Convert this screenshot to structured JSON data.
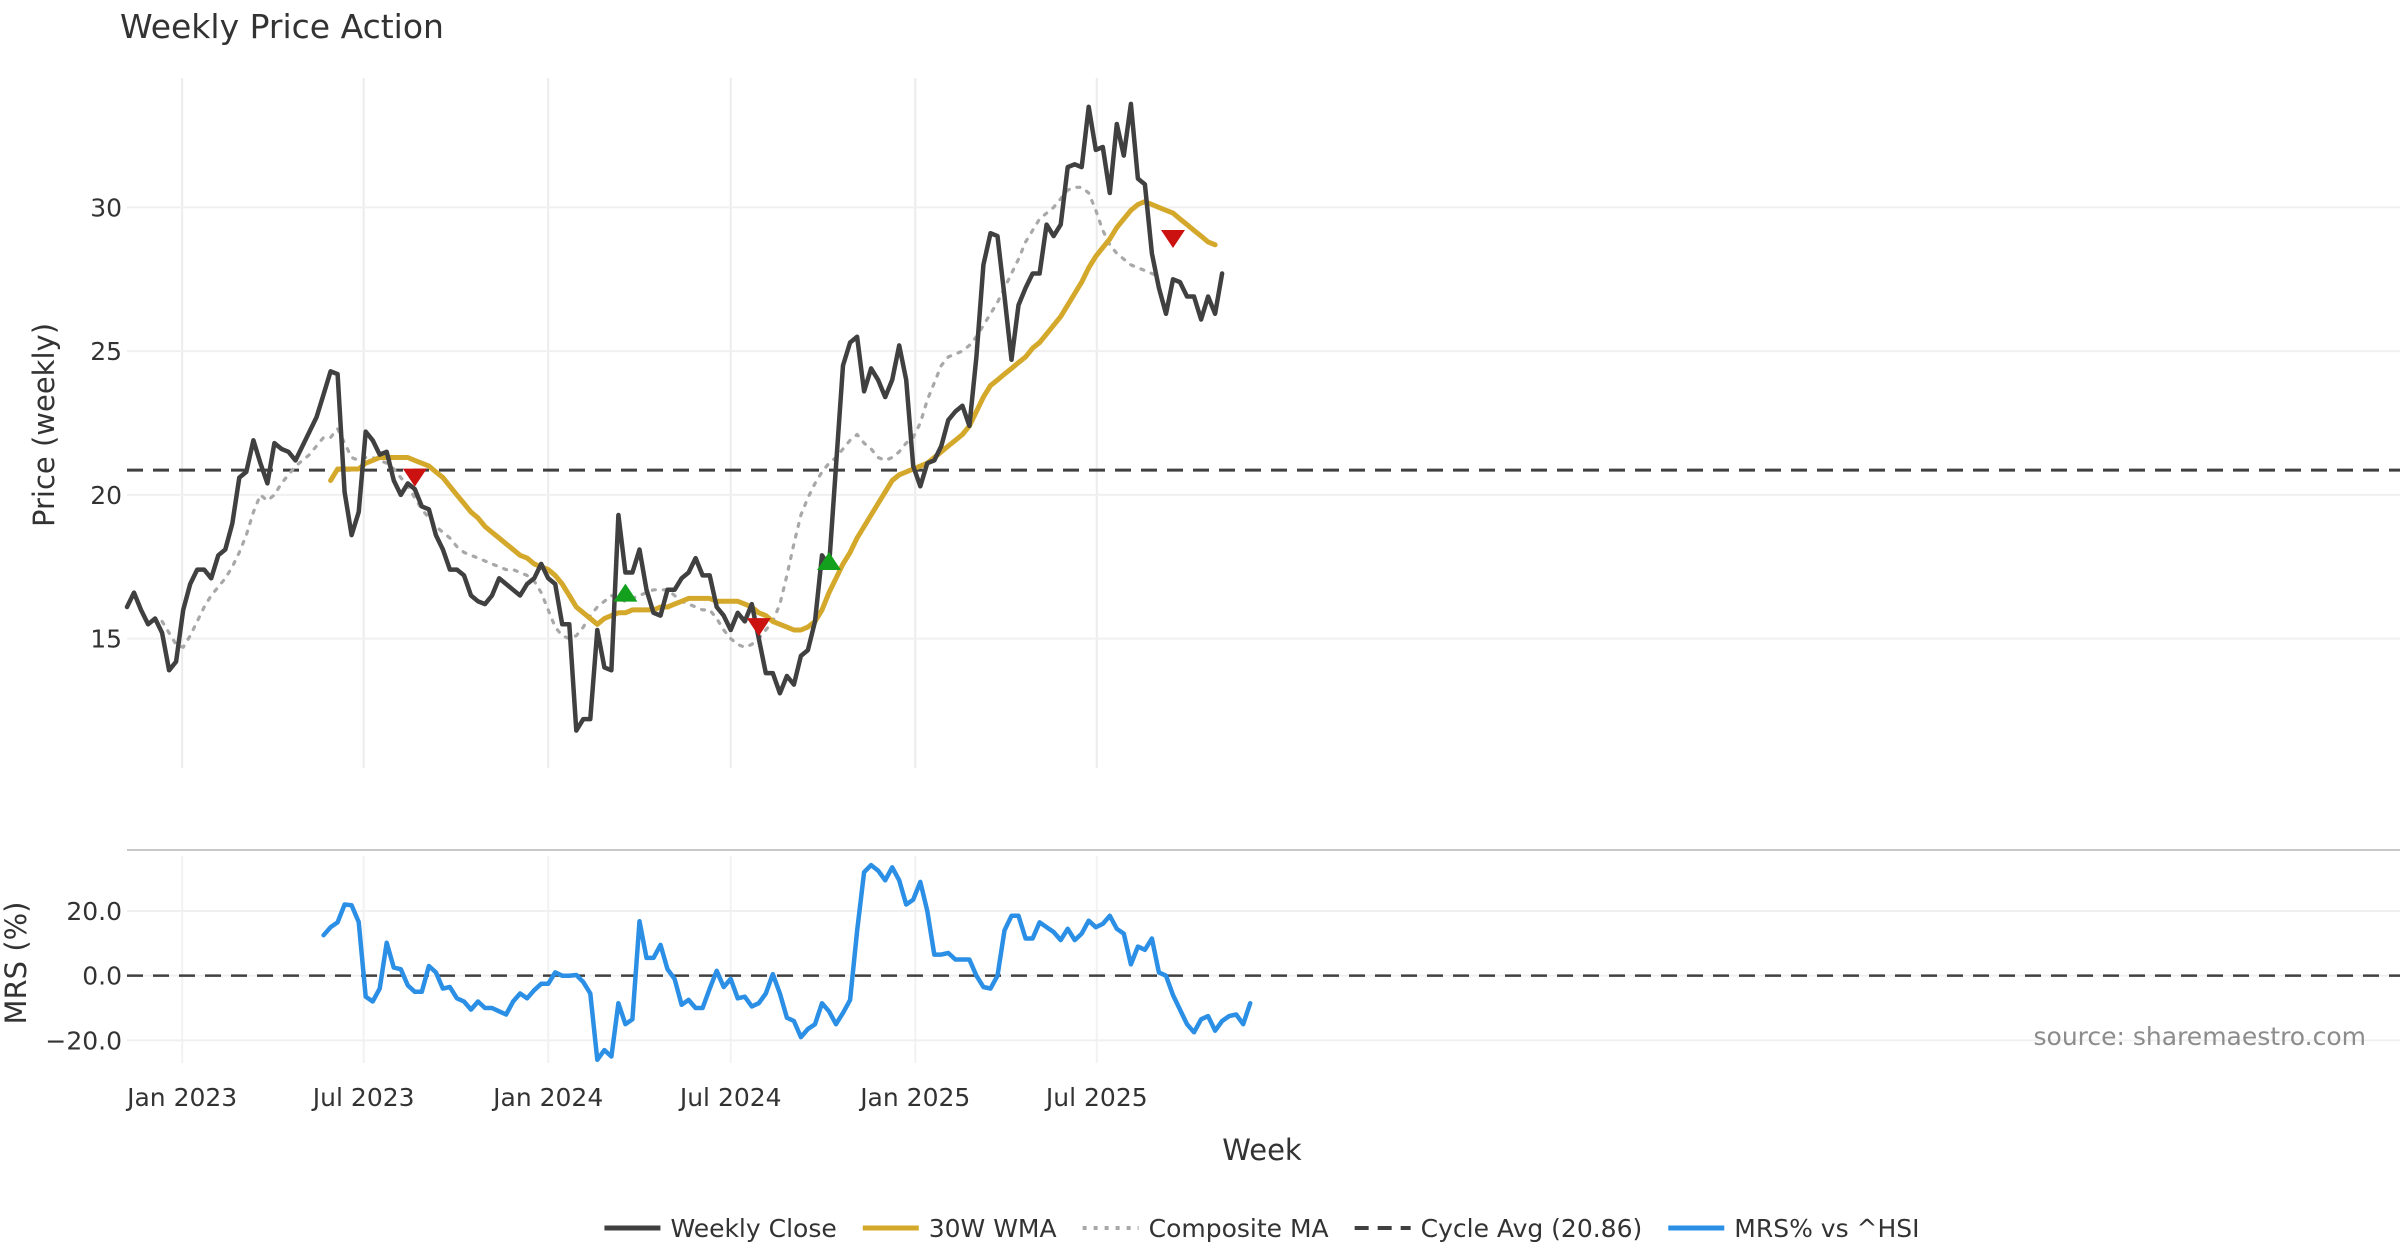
{
  "chart_data": [
    {
      "type": "line",
      "panel": "price",
      "title": "Weekly Price Action",
      "xlabel": "Week",
      "ylabel": "Price (weekly)",
      "ylim": [
        10.5,
        34.5
      ],
      "yticks": [
        15,
        20,
        25,
        30
      ],
      "x_start": "2022-11-07",
      "x_step_days": 7,
      "series": [
        {
          "name": "Weekly Close",
          "color": "#404040",
          "style": "solid",
          "values": [
            16.1,
            16.6,
            16.0,
            15.5,
            15.7,
            15.2,
            13.9,
            14.2,
            16.0,
            16.9,
            17.4,
            17.4,
            17.1,
            17.9,
            18.1,
            19.0,
            20.6,
            20.8,
            21.9,
            21.1,
            20.4,
            21.8,
            21.6,
            21.5,
            21.2,
            21.7,
            22.2,
            22.7,
            23.5,
            24.3,
            24.2,
            20.1,
            18.6,
            19.4,
            22.2,
            21.9,
            21.4,
            21.5,
            20.5,
            20.0,
            20.4,
            20.2,
            19.6,
            19.5,
            18.6,
            18.1,
            17.4,
            17.4,
            17.2,
            16.5,
            16.3,
            16.2,
            16.5,
            17.1,
            16.9,
            16.7,
            16.5,
            16.9,
            17.1,
            17.6,
            17.1,
            16.9,
            15.5,
            15.5,
            11.8,
            12.2,
            12.2,
            15.3,
            14.0,
            13.9,
            19.3,
            17.3,
            17.3,
            18.1,
            16.7,
            15.9,
            15.8,
            16.7,
            16.7,
            17.1,
            17.3,
            17.8,
            17.2,
            17.2,
            16.1,
            15.8,
            15.3,
            15.9,
            15.6,
            16.2,
            15.0,
            13.8,
            13.8,
            13.1,
            13.7,
            13.4,
            14.4,
            14.6,
            15.6,
            17.9,
            17.5,
            21.0,
            24.5,
            25.3,
            25.5,
            23.6,
            24.4,
            24.0,
            23.4,
            24.0,
            25.2,
            24.0,
            21.0,
            20.3,
            21.1,
            21.2,
            21.7,
            22.6,
            22.9,
            23.1,
            22.4,
            24.8,
            28.0,
            29.1,
            29.0,
            26.9,
            24.7,
            26.6,
            27.2,
            27.7,
            27.7,
            29.4,
            29.0,
            29.4,
            31.4,
            31.5,
            31.4,
            33.5,
            32.0,
            32.1,
            30.5,
            32.9,
            31.8,
            33.6,
            31.0,
            30.8,
            28.4,
            27.2,
            26.3,
            27.5,
            27.4,
            26.9,
            26.9,
            26.1,
            26.9,
            26.3,
            27.7
          ]
        },
        {
          "name": "30W WMA",
          "color": "#D4A82A",
          "style": "solid",
          "start_index": 29,
          "values": [
            20.5,
            20.9,
            20.9,
            20.9,
            20.9,
            21.1,
            21.2,
            21.3,
            21.3,
            21.3,
            21.3,
            21.3,
            21.2,
            21.1,
            21.0,
            20.8,
            20.6,
            20.3,
            20.0,
            19.7,
            19.4,
            19.2,
            18.9,
            18.7,
            18.5,
            18.3,
            18.1,
            17.9,
            17.8,
            17.6,
            17.5,
            17.4,
            17.2,
            16.9,
            16.5,
            16.1,
            15.9,
            15.7,
            15.5,
            15.7,
            15.8,
            15.9,
            15.9,
            16.0,
            16.0,
            16.0,
            16.0,
            16.1,
            16.1,
            16.2,
            16.3,
            16.4,
            16.4,
            16.4,
            16.4,
            16.3,
            16.3,
            16.3,
            16.3,
            16.2,
            16.1,
            15.9,
            15.8,
            15.6,
            15.5,
            15.4,
            15.3,
            15.3,
            15.4,
            15.6,
            16.0,
            16.6,
            17.1,
            17.6,
            18.0,
            18.5,
            18.9,
            19.3,
            19.7,
            20.1,
            20.5,
            20.7,
            20.8,
            20.9,
            21.0,
            21.1,
            21.3,
            21.5,
            21.7,
            21.9,
            22.1,
            22.4,
            22.9,
            23.4,
            23.8,
            24.0,
            24.2,
            24.4,
            24.6,
            24.8,
            25.1,
            25.3,
            25.6,
            25.9,
            26.2,
            26.6,
            27.0,
            27.4,
            27.9,
            28.3,
            28.6,
            28.9,
            29.3,
            29.6,
            29.9,
            30.1,
            30.2,
            30.1,
            30.0,
            29.9,
            29.8,
            29.6,
            29.4,
            29.2,
            29.0,
            28.8,
            28.7
          ]
        },
        {
          "name": "Composite MA",
          "color": "#A8A8A8",
          "style": "dotted",
          "start_index": 5,
          "values": [
            15.6,
            15.2,
            14.8,
            14.7,
            15.1,
            15.6,
            16.1,
            16.5,
            16.8,
            17.1,
            17.5,
            18.0,
            18.6,
            19.4,
            20.0,
            19.8,
            20.0,
            20.4,
            20.7,
            21.0,
            21.2,
            21.4,
            21.7,
            22.0,
            22.0,
            22.3,
            21.8,
            21.3,
            21.2,
            21.3,
            21.3,
            21.2,
            21.1,
            20.9,
            20.6,
            20.3,
            19.9,
            19.5,
            19.2,
            18.9,
            18.7,
            18.5,
            18.2,
            18.0,
            17.9,
            17.8,
            17.7,
            17.6,
            17.5,
            17.4,
            17.4,
            17.3,
            17.2,
            17.0,
            16.6,
            16.0,
            15.4,
            15.1,
            15.0,
            15.1,
            15.4,
            15.8,
            16.1,
            16.3,
            16.5,
            16.4,
            16.3,
            16.4,
            16.5,
            16.6,
            16.7,
            16.7,
            16.7,
            16.5,
            16.3,
            16.2,
            16.1,
            16.0,
            16.0,
            15.7,
            15.3,
            15.0,
            14.8,
            14.7,
            14.8,
            15.0,
            15.3,
            15.6,
            16.2,
            17.2,
            18.3,
            19.3,
            19.9,
            20.4,
            20.8,
            21.1,
            21.3,
            21.6,
            21.9,
            22.1,
            21.8,
            21.6,
            21.3,
            21.2,
            21.3,
            21.5,
            21.8,
            22.0,
            22.5,
            23.3,
            23.9,
            24.5,
            24.8,
            24.9,
            25.0,
            25.2,
            25.5,
            25.9,
            26.3,
            26.7,
            27.2,
            27.7,
            28.2,
            28.8,
            29.2,
            29.6,
            29.8,
            30.0,
            30.3,
            30.6,
            30.7,
            30.7,
            30.5,
            29.9,
            29.2,
            28.7,
            28.4,
            28.2,
            28.0,
            27.9,
            27.8,
            27.7,
            27.6
          ]
        }
      ],
      "reference_line": {
        "name": "Cycle Avg (20.86)",
        "value": 20.86,
        "color": "#404040",
        "style": "dashed"
      },
      "markers": [
        {
          "type": "sell",
          "index": 41,
          "value": 20.6,
          "color": "#CC1111"
        },
        {
          "type": "buy",
          "index": 71,
          "value": 16.6,
          "color": "#13A01D"
        },
        {
          "type": "sell",
          "index": 90,
          "value": 15.4,
          "color": "#CC1111"
        },
        {
          "type": "buy",
          "index": 100,
          "value": 17.7,
          "color": "#13A01D"
        },
        {
          "type": "sell",
          "index": 149,
          "value": 28.9,
          "color": "#CC1111"
        }
      ],
      "vertical_gridlines": [
        "Jan 2023",
        "Jul 2023",
        "Jan 2024",
        "Jul 2024",
        "Jan 2025",
        "Jul 2025"
      ]
    },
    {
      "type": "line",
      "panel": "mrs",
      "ylabel": "MRS (%)",
      "ylim": [
        -27,
        37
      ],
      "yticks": [
        20,
        0,
        -20
      ],
      "ytick_labels": [
        "20.0",
        "0.0",
        "−20.0"
      ],
      "reference_line": {
        "value": 0,
        "color": "#404040",
        "style": "dashed"
      },
      "series": [
        {
          "name": "MRS% vs ^HSI",
          "color": "#2B8FE6",
          "style": "solid",
          "start_index": 28,
          "values": [
            12.5,
            15.0,
            16.5,
            22.0,
            21.8,
            16.6,
            -6.5,
            -8.0,
            -4.0,
            10.2,
            2.5,
            2.0,
            -3.0,
            -5.0,
            -5.0,
            3.0,
            1.0,
            -4.0,
            -3.5,
            -7.0,
            -8.0,
            -10.5,
            -8.0,
            -10.0,
            -10.0,
            -11.0,
            -12.0,
            -8.0,
            -5.5,
            -7.0,
            -4.5,
            -2.5,
            -2.5,
            1.0,
            0.0,
            0.0,
            0.2,
            -2.0,
            -5.5,
            -26.0,
            -23.0,
            -25.0,
            -8.5,
            -15.0,
            -13.5,
            16.8,
            5.5,
            5.5,
            9.5,
            2.0,
            -1.0,
            -9.0,
            -7.5,
            -10.0,
            -10.0,
            -4.0,
            1.5,
            -3.5,
            -1.0,
            -7.0,
            -6.5,
            -9.5,
            -8.5,
            -5.5,
            0.5,
            -5.5,
            -13.0,
            -14.0,
            -19.0,
            -16.5,
            -15.0,
            -8.5,
            -11.0,
            -15.0,
            -11.5,
            -7.5,
            13.8,
            32.0,
            34.2,
            32.5,
            29.5,
            33.5,
            29.5,
            22.0,
            23.5,
            29.0,
            20.0,
            6.5,
            6.5,
            7.0,
            5.0,
            5.0,
            5.0,
            0.0,
            -3.5,
            -4.0,
            0.0,
            14.0,
            18.5,
            18.5,
            11.5,
            11.5,
            16.5,
            15.0,
            13.5,
            11.0,
            14.5,
            11.0,
            13.0,
            17.0,
            15.0,
            16.0,
            18.5,
            14.5,
            13.0,
            3.5,
            9.0,
            8.0,
            11.5,
            1.0,
            0.0,
            -6.0,
            -10.5,
            -15.0,
            -17.5,
            -13.5,
            -12.5,
            -17.0,
            -14.0,
            -12.5,
            -12.0,
            -15.0,
            -8.5
          ]
        }
      ],
      "xtick_labels": [
        "Jan 2023",
        "Jul 2023",
        "Jan 2024",
        "Jul 2024",
        "Jan 2025",
        "Jul 2025"
      ],
      "xtick_dates": [
        "2023-01-01",
        "2023-07-01",
        "2024-01-01",
        "2024-07-01",
        "2025-01-01",
        "2025-07-01"
      ],
      "annotation": "source: sharemaestro.com"
    }
  ],
  "legend": {
    "placement": "bottom-center",
    "items": [
      {
        "label": "Weekly Close",
        "color": "#404040",
        "style": "solid"
      },
      {
        "label": "30W WMA",
        "color": "#D4A82A",
        "style": "solid"
      },
      {
        "label": "Composite MA",
        "color": "#A8A8A8",
        "style": "dotted"
      },
      {
        "label": "Cycle Avg (20.86)",
        "color": "#404040",
        "style": "dashed"
      },
      {
        "label": "MRS% vs ^HSI",
        "color": "#2B8FE6",
        "style": "solid"
      }
    ]
  }
}
